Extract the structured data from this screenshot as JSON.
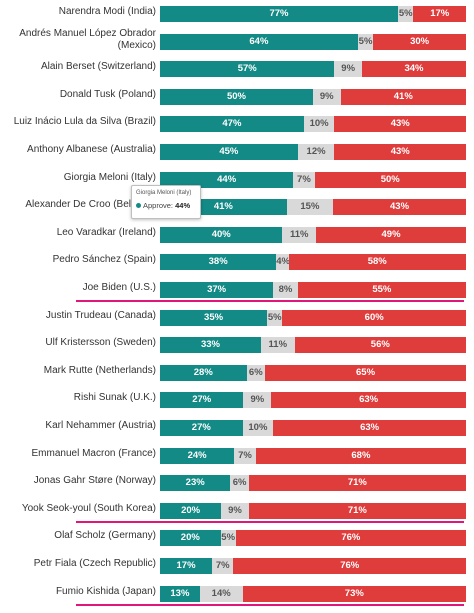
{
  "colors": {
    "approve": "#138a86",
    "neutral": "#d9d9d9",
    "disapprove": "#df3c3c",
    "highlight": "#e0167a"
  },
  "tooltip": {
    "title": "Giorgia Meloni (Italy)",
    "label": "Approve:",
    "value": "44%"
  },
  "chart_data": {
    "type": "bar",
    "orientation": "horizontal",
    "stacked": true,
    "categories": [
      "Narendra Modi (India)",
      "Andrés Manuel López Obrador (Mexico)",
      "Alain Berset (Switzerland)",
      "Donald Tusk (Poland)",
      "Luiz Inácio Lula da Silva (Brazil)",
      "Anthony Albanese (Australia)",
      "Giorgia Meloni (Italy)",
      "Alexander De Croo (Belgium)",
      "Leo Varadkar (Ireland)",
      "Pedro Sánchez (Spain)",
      "Joe Biden (U.S.)",
      "Justin Trudeau (Canada)",
      "Ulf Kristersson (Sweden)",
      "Mark Rutte (Netherlands)",
      "Rishi Sunak (U.K.)",
      "Karl Nehammer (Austria)",
      "Emmanuel Macron (France)",
      "Jonas Gahr Støre (Norway)",
      "Yook Seok-youl (South Korea)",
      "Olaf Scholz (Germany)",
      "Petr Fiala (Czech Republic)",
      "Fumio Kishida (Japan)"
    ],
    "series": [
      {
        "name": "Approve",
        "color": "#138a86",
        "values": [
          77,
          64,
          57,
          50,
          47,
          45,
          44,
          41,
          40,
          38,
          37,
          35,
          33,
          28,
          27,
          27,
          24,
          23,
          20,
          20,
          17,
          13
        ]
      },
      {
        "color": "#d9d9d9",
        "values": [
          5,
          5,
          9,
          9,
          10,
          12,
          7,
          15,
          11,
          4,
          8,
          5,
          11,
          6,
          9,
          10,
          7,
          6,
          9,
          5,
          7,
          14
        ]
      },
      {
        "color": "#df3c3c",
        "values": [
          17,
          30,
          34,
          41,
          43,
          43,
          50,
          43,
          49,
          58,
          55,
          60,
          56,
          65,
          63,
          63,
          68,
          71,
          71,
          76,
          76,
          73
        ]
      }
    ],
    "value_labels": [
      [
        "77%",
        "5%",
        "17%"
      ],
      [
        "64%",
        "5%",
        "30%"
      ],
      [
        "57%",
        "9%",
        "34%"
      ],
      [
        "50%",
        "9%",
        "41%"
      ],
      [
        "47%",
        "10%",
        "43%"
      ],
      [
        "45%",
        "12%",
        "43%"
      ],
      [
        "44%",
        "7%",
        "50%"
      ],
      [
        "41%",
        "15%",
        "43%"
      ],
      [
        "40%",
        "11%",
        "49%"
      ],
      [
        "38%",
        "4%",
        "58%"
      ],
      [
        "37%",
        "8%",
        "55%"
      ],
      [
        "35%",
        "5%",
        "60%"
      ],
      [
        "33%",
        "11%",
        "56%"
      ],
      [
        "28%",
        "6%",
        "65%"
      ],
      [
        "27%",
        "9%",
        "63%"
      ],
      [
        "27%",
        "10%",
        "63%"
      ],
      [
        "24%",
        "7%",
        "68%"
      ],
      [
        "23%",
        "6%",
        "71%"
      ],
      [
        "20%",
        "9%",
        "71%"
      ],
      [
        "20%",
        "5%",
        "76%"
      ],
      [
        "17%",
        "7%",
        "76%"
      ],
      [
        "13%",
        "14%",
        "73%"
      ]
    ],
    "highlighted": [
      "Joe Biden (U.S.)",
      "Yook Seok-youl (South Korea)",
      "Fumio Kishida (Japan)"
    ],
    "xlim": [
      0,
      100
    ],
    "grid": false,
    "legend": "none"
  }
}
